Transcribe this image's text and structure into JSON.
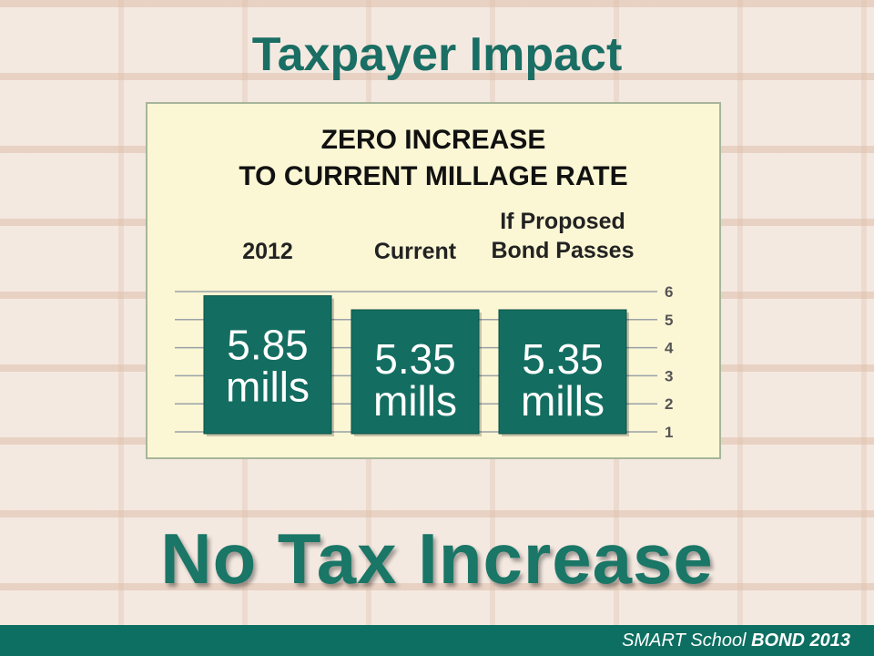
{
  "title": "Taxpayer Impact",
  "panel": {
    "heading_line1": "ZERO INCREASE",
    "heading_line2": "TO CURRENT MILLAGE RATE"
  },
  "chart_data": {
    "type": "bar",
    "categories": [
      "2012",
      "Current",
      "If Proposed Bond Passes"
    ],
    "category_lines": [
      [
        "2012"
      ],
      [
        "Current"
      ],
      [
        "If Proposed",
        "Bond Passes"
      ]
    ],
    "values": [
      5.85,
      5.35,
      5.35
    ],
    "value_labels": [
      [
        "5.85",
        "mills"
      ],
      [
        "5.35",
        "mills"
      ],
      [
        "5.35",
        "mills"
      ]
    ],
    "yticks": [
      1,
      2,
      3,
      4,
      5,
      6
    ],
    "ylim": [
      1,
      6
    ],
    "grid": true,
    "bar_color": "#136e61"
  },
  "headline": "No Tax Increase",
  "footer": {
    "part1": "SMART School ",
    "part2": "BOND 2013"
  }
}
